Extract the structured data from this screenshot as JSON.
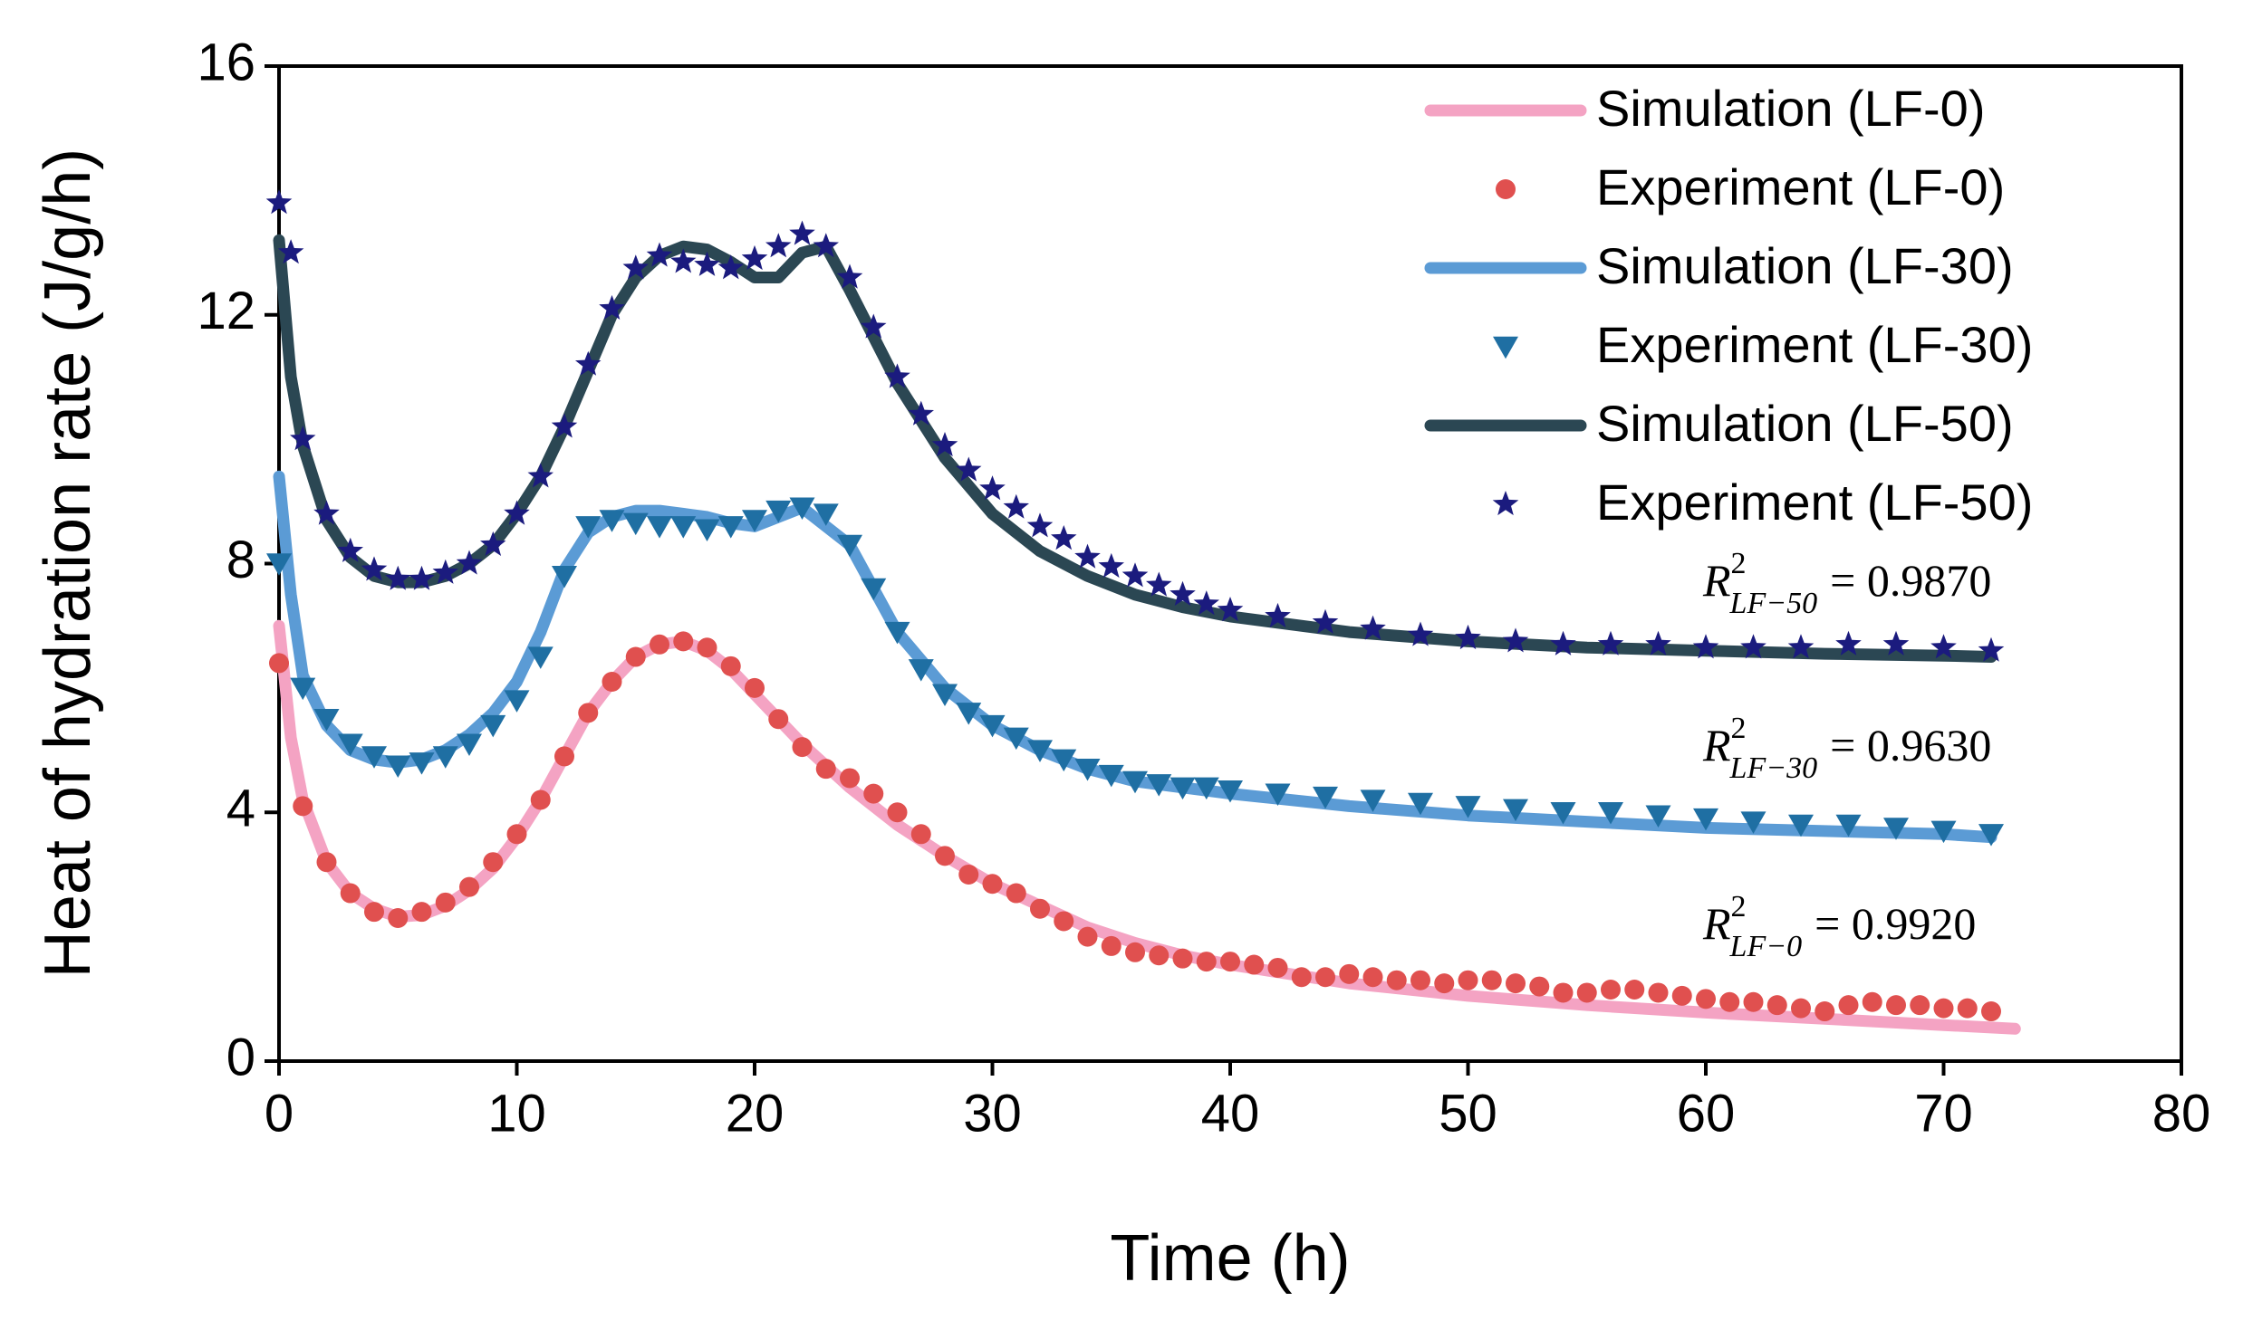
{
  "chart_data": {
    "type": "line",
    "xlabel": "Time (h)",
    "ylabel": "Heat of hydration rate (J/g/h)",
    "xlim": [
      0,
      80
    ],
    "xticks": [
      0,
      10,
      20,
      30,
      40,
      50,
      60,
      70,
      80
    ],
    "ylim": [
      0,
      16
    ],
    "yticks": [
      0,
      4,
      8,
      12,
      16
    ],
    "legend": "upper right",
    "series": [
      {
        "name": "Simulation  (LF-0)",
        "type": "line",
        "color": "#f4a3c3",
        "x": [
          0,
          0.5,
          1,
          2,
          3,
          4,
          5,
          6,
          7,
          8,
          9,
          10,
          11,
          12,
          13,
          14,
          15,
          16,
          17,
          18,
          19,
          20,
          22,
          24,
          26,
          28,
          30,
          32,
          34,
          36,
          38,
          40,
          45,
          50,
          55,
          60,
          65,
          70,
          73
        ],
        "values": [
          7.0,
          5.2,
          4.2,
          3.2,
          2.7,
          2.45,
          2.32,
          2.35,
          2.5,
          2.75,
          3.1,
          3.6,
          4.2,
          4.9,
          5.6,
          6.1,
          6.5,
          6.7,
          6.75,
          6.6,
          6.3,
          5.9,
          5.1,
          4.4,
          3.8,
          3.3,
          2.85,
          2.5,
          2.15,
          1.9,
          1.7,
          1.55,
          1.25,
          1.05,
          0.9,
          0.78,
          0.68,
          0.58,
          0.52
        ]
      },
      {
        "name": "Experiment (LF-0)",
        "type": "scatter",
        "marker": "circle",
        "color": "#e0504f",
        "x": [
          0,
          1,
          2,
          3,
          4,
          5,
          6,
          7,
          8,
          9,
          10,
          11,
          12,
          13,
          14,
          15,
          16,
          17,
          18,
          19,
          20,
          21,
          22,
          23,
          24,
          25,
          26,
          27,
          28,
          29,
          30,
          31,
          32,
          33,
          34,
          35,
          36,
          37,
          38,
          39,
          40,
          41,
          42,
          43,
          44,
          45,
          46,
          47,
          48,
          49,
          50,
          51,
          52,
          53,
          54,
          55,
          56,
          57,
          58,
          59,
          60,
          61,
          62,
          63,
          64,
          65,
          66,
          67,
          68,
          69,
          70,
          71,
          72
        ],
        "values": [
          6.4,
          4.1,
          3.2,
          2.7,
          2.4,
          2.3,
          2.4,
          2.55,
          2.8,
          3.2,
          3.65,
          4.2,
          4.9,
          5.6,
          6.1,
          6.5,
          6.7,
          6.75,
          6.65,
          6.35,
          6.0,
          5.5,
          5.05,
          4.7,
          4.55,
          4.3,
          4.0,
          3.65,
          3.3,
          3.0,
          2.85,
          2.7,
          2.45,
          2.25,
          2.0,
          1.85,
          1.75,
          1.7,
          1.65,
          1.6,
          1.6,
          1.55,
          1.5,
          1.35,
          1.35,
          1.4,
          1.35,
          1.3,
          1.3,
          1.25,
          1.3,
          1.3,
          1.25,
          1.2,
          1.1,
          1.1,
          1.15,
          1.15,
          1.1,
          1.05,
          1.0,
          0.95,
          0.95,
          0.9,
          0.85,
          0.8,
          0.9,
          0.95,
          0.9,
          0.9,
          0.85,
          0.85,
          0.8
        ]
      },
      {
        "name": "Simulation  (LF-30)",
        "type": "line",
        "color": "#5b9bd5",
        "x": [
          0,
          0.5,
          1,
          2,
          3,
          4,
          5,
          6,
          7,
          8,
          9,
          10,
          11,
          12,
          13,
          14,
          15,
          16,
          17,
          18,
          19,
          20,
          22,
          24,
          26,
          28,
          30,
          32,
          34,
          36,
          38,
          40,
          45,
          50,
          55,
          60,
          65,
          70,
          72
        ],
        "values": [
          9.4,
          7.5,
          6.2,
          5.4,
          5.0,
          4.85,
          4.8,
          4.85,
          5.0,
          5.25,
          5.6,
          6.1,
          6.9,
          7.9,
          8.5,
          8.75,
          8.85,
          8.85,
          8.8,
          8.75,
          8.65,
          8.6,
          8.9,
          8.3,
          6.9,
          6.0,
          5.4,
          5.0,
          4.7,
          4.5,
          4.4,
          4.3,
          4.1,
          3.95,
          3.85,
          3.75,
          3.7,
          3.65,
          3.6
        ]
      },
      {
        "name": "Experiment (LF-30)",
        "type": "scatter",
        "marker": "triangle",
        "color": "#1f6fa3",
        "x": [
          0,
          1,
          2,
          3,
          4,
          5,
          6,
          7,
          8,
          9,
          10,
          11,
          12,
          13,
          14,
          15,
          16,
          17,
          18,
          19,
          20,
          21,
          22,
          23,
          24,
          25,
          26,
          27,
          28,
          29,
          30,
          31,
          32,
          33,
          34,
          35,
          36,
          37,
          38,
          39,
          40,
          42,
          44,
          46,
          48,
          50,
          52,
          54,
          56,
          58,
          60,
          62,
          64,
          66,
          68,
          70,
          72
        ],
        "values": [
          8.0,
          6.0,
          5.5,
          5.1,
          4.9,
          4.75,
          4.8,
          4.9,
          5.1,
          5.4,
          5.8,
          6.5,
          7.8,
          8.6,
          8.7,
          8.65,
          8.6,
          8.6,
          8.55,
          8.6,
          8.7,
          8.85,
          8.9,
          8.8,
          8.3,
          7.6,
          6.9,
          6.3,
          5.9,
          5.6,
          5.4,
          5.2,
          5.0,
          4.85,
          4.7,
          4.6,
          4.5,
          4.45,
          4.4,
          4.4,
          4.35,
          4.3,
          4.25,
          4.2,
          4.15,
          4.1,
          4.05,
          4.0,
          4.0,
          3.95,
          3.9,
          3.85,
          3.8,
          3.8,
          3.75,
          3.7,
          3.65
        ]
      },
      {
        "name": "Simulation  (LF-50)",
        "type": "line",
        "color": "#2b4753",
        "x": [
          0,
          0.5,
          1,
          2,
          3,
          4,
          5,
          6,
          7,
          8,
          9,
          10,
          11,
          12,
          13,
          14,
          15,
          16,
          17,
          18,
          19,
          20,
          21,
          22,
          23,
          24,
          26,
          28,
          30,
          32,
          34,
          36,
          38,
          40,
          45,
          50,
          55,
          60,
          65,
          70,
          72
        ],
        "values": [
          13.2,
          11.0,
          9.9,
          8.7,
          8.1,
          7.8,
          7.7,
          7.7,
          7.8,
          8.0,
          8.3,
          8.8,
          9.4,
          10.2,
          11.1,
          12.0,
          12.6,
          12.95,
          13.1,
          13.05,
          12.85,
          12.6,
          12.6,
          13.0,
          13.1,
          12.4,
          10.9,
          9.7,
          8.8,
          8.2,
          7.8,
          7.5,
          7.3,
          7.15,
          6.9,
          6.75,
          6.65,
          6.6,
          6.55,
          6.52,
          6.5
        ]
      },
      {
        "name": "Experiment (LF-50)",
        "type": "scatter",
        "marker": "star",
        "color": "#1b1b7e",
        "x": [
          0,
          0.5,
          1,
          2,
          3,
          4,
          5,
          6,
          7,
          8,
          9,
          10,
          11,
          12,
          13,
          14,
          15,
          16,
          17,
          18,
          19,
          20,
          21,
          22,
          23,
          24,
          25,
          26,
          27,
          28,
          29,
          30,
          31,
          32,
          33,
          34,
          35,
          36,
          37,
          38,
          39,
          40,
          42,
          44,
          46,
          48,
          50,
          52,
          54,
          56,
          58,
          60,
          62,
          64,
          66,
          68,
          70,
          72
        ],
        "values": [
          13.8,
          13.0,
          10.0,
          8.8,
          8.2,
          7.9,
          7.75,
          7.75,
          7.85,
          8.0,
          8.3,
          8.8,
          9.4,
          10.2,
          11.2,
          12.1,
          12.75,
          12.95,
          12.85,
          12.8,
          12.75,
          12.9,
          13.1,
          13.3,
          13.1,
          12.6,
          11.8,
          11.0,
          10.4,
          9.9,
          9.5,
          9.2,
          8.9,
          8.6,
          8.4,
          8.1,
          7.95,
          7.8,
          7.65,
          7.5,
          7.35,
          7.25,
          7.15,
          7.05,
          6.95,
          6.85,
          6.8,
          6.75,
          6.7,
          6.7,
          6.7,
          6.65,
          6.65,
          6.65,
          6.7,
          6.7,
          6.65,
          6.6
        ]
      }
    ],
    "annotations": [
      {
        "symbol": "R",
        "sup": "2",
        "sub": "LF−50",
        "text": "= 0.9870"
      },
      {
        "symbol": "R",
        "sup": "2",
        "sub": "LF−30",
        "text": "= 0.9630"
      },
      {
        "symbol": "R",
        "sup": "2",
        "sub": "LF−0",
        "text": "= 0.9920"
      }
    ]
  }
}
